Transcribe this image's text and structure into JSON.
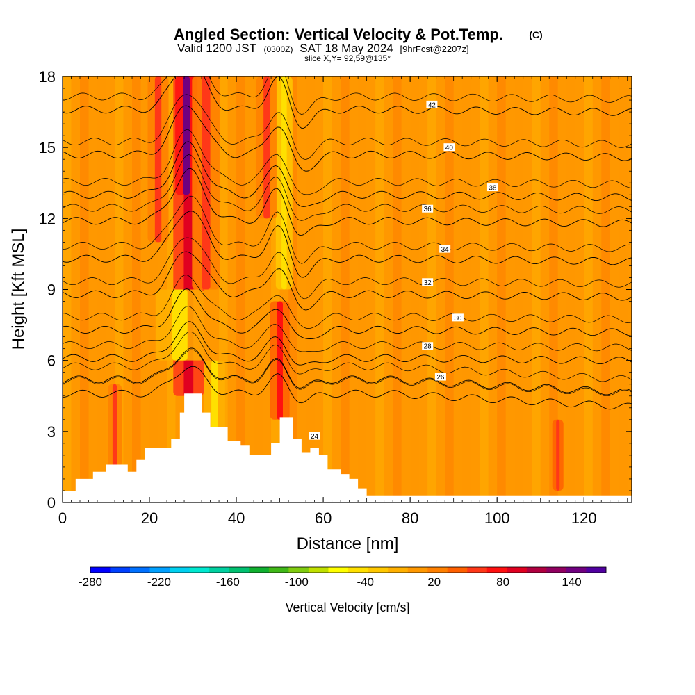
{
  "chart_data": {
    "type": "heatmap",
    "title": "Angled Section: Vertical Velocity & Pot.Temp.",
    "title_unit": "(C)",
    "subtitle_main": "Valid 1200 JST",
    "subtitle_z": "(0300Z)",
    "subtitle_date": "SAT 18 May 2024",
    "subtitle_fcst": "[9hrFcst@2207z]",
    "slice_label": "slice X,Y= 92,59@135°",
    "xlabel": "Distance [nm]",
    "ylabel": "Height [Kft MSL]",
    "xlim": [
      0,
      131
    ],
    "ylim": [
      0,
      18
    ],
    "x_ticks": [
      "0",
      "20",
      "40",
      "60",
      "80",
      "100",
      "120"
    ],
    "y_ticks": [
      "0",
      "3",
      "6",
      "9",
      "12",
      "15",
      "18"
    ],
    "colorbar": {
      "title": "Vertical Velocity [cm/s]",
      "tick_labels": [
        "-280",
        "-220",
        "-160",
        "-100",
        "-40",
        "20",
        "80",
        "140"
      ],
      "tick_values": [
        -280,
        -220,
        -160,
        -100,
        -40,
        20,
        80,
        140
      ],
      "range": [
        -280,
        170
      ],
      "colors": [
        "#0000ff",
        "#0040ff",
        "#0070ff",
        "#00a0ff",
        "#00d0f0",
        "#00e8d0",
        "#00d0a0",
        "#00c070",
        "#10b030",
        "#40b818",
        "#80cc10",
        "#c0e000",
        "#ffff00",
        "#ffe000",
        "#ffc800",
        "#ffb000",
        "#ff9800",
        "#ff8000",
        "#ff6000",
        "#ff3818",
        "#ff1010",
        "#e00020",
        "#b00040",
        "#900060",
        "#700080",
        "#5000a0"
      ]
    },
    "terrain": [
      [
        0,
        0.5
      ],
      [
        3,
        1.0
      ],
      [
        7,
        1.3
      ],
      [
        10,
        1.6
      ],
      [
        13,
        1.6
      ],
      [
        15,
        1.3
      ],
      [
        17,
        1.8
      ],
      [
        19,
        2.3
      ],
      [
        23,
        2.3
      ],
      [
        25,
        2.7
      ],
      [
        27,
        3.8
      ],
      [
        28,
        4.6
      ],
      [
        31,
        4.6
      ],
      [
        32,
        3.8
      ],
      [
        34,
        3.2
      ],
      [
        36,
        3.2
      ],
      [
        38,
        2.6
      ],
      [
        41,
        2.4
      ],
      [
        43,
        2.0
      ],
      [
        46,
        2.0
      ],
      [
        48,
        2.5
      ],
      [
        50,
        3.6
      ],
      [
        52,
        3.6
      ],
      [
        53,
        2.7
      ],
      [
        55,
        2.1
      ],
      [
        57,
        2.3
      ],
      [
        59,
        2.0
      ],
      [
        61,
        1.4
      ],
      [
        64,
        1.2
      ],
      [
        66,
        1.0
      ],
      [
        68,
        0.6
      ],
      [
        70,
        0.3
      ],
      [
        72,
        0.3
      ],
      [
        131,
        0.3
      ]
    ],
    "velocity_features": [
      {
        "x": 29,
        "z0": 4.5,
        "z1": 18,
        "w": 2.2,
        "value": 90
      },
      {
        "x": 28.5,
        "z0": 13,
        "z1": 18,
        "w": 1.6,
        "value": 150
      },
      {
        "x": 33,
        "z0": 9,
        "z1": 18,
        "w": 2.0,
        "value": 50
      },
      {
        "x": 22,
        "z0": 11,
        "z1": 18,
        "w": 1.5,
        "value": 50
      },
      {
        "x": 50,
        "z0": 3.5,
        "z1": 8.5,
        "w": 1.4,
        "value": 70
      },
      {
        "x": 51,
        "z0": 9,
        "z1": 18,
        "w": 1.2,
        "value": -50
      },
      {
        "x": 47,
        "z0": 12,
        "z1": 18,
        "w": 1.5,
        "value": 50
      },
      {
        "x": 12,
        "z0": 1.5,
        "z1": 5,
        "w": 1.0,
        "value": 50
      },
      {
        "x": 114,
        "z0": 0.5,
        "z1": 3.5,
        "w": 0.8,
        "value": 60
      },
      {
        "x": 27,
        "z0": 6,
        "z1": 9,
        "w": 3.5,
        "value": -40
      },
      {
        "x": 35,
        "z0": 3,
        "z1": 6,
        "w": 1.5,
        "value": -40
      }
    ],
    "theta_contours": [
      {
        "label": "24",
        "base": 4.6,
        "label_x": 58,
        "label_z": 2.8
      },
      {
        "label": "26",
        "base": 5.2,
        "label_x": 87,
        "label_z": 5.3
      },
      {
        "label": "28",
        "base": 6.1,
        "label_x": 84,
        "label_z": 6.6
      },
      {
        "label": "30",
        "base": 7.3,
        "label_x": 91,
        "label_z": 7.8
      },
      {
        "label": "32",
        "base": 8.8,
        "label_x": 84,
        "label_z": 9.3
      },
      {
        "label": "34",
        "base": 10.3,
        "label_x": 88,
        "label_z": 10.7
      },
      {
        "label": "36",
        "base": 11.9,
        "label_x": 84,
        "label_z": 12.4
      },
      {
        "label": "38",
        "base": 13.0,
        "label_x": 99,
        "label_z": 13.3
      },
      {
        "label": "40",
        "base": 14.7,
        "label_x": 89,
        "label_z": 15.0
      },
      {
        "label": "42",
        "base": 16.6,
        "label_x": 85,
        "label_z": 16.8
      }
    ]
  }
}
